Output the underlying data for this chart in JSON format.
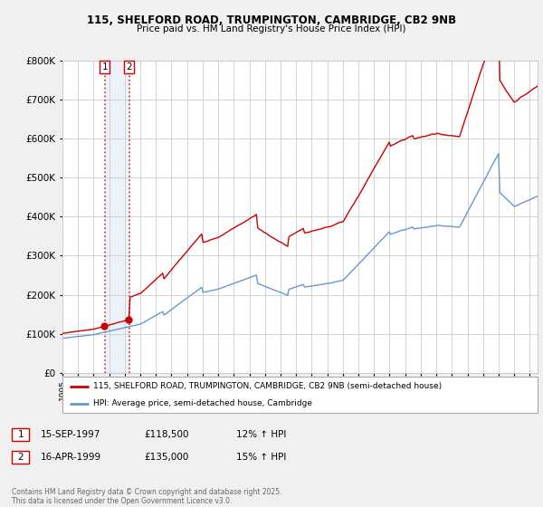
{
  "title1": "115, SHELFORD ROAD, TRUMPINGTON, CAMBRIDGE, CB2 9NB",
  "title2": "Price paid vs. HM Land Registry's House Price Index (HPI)",
  "legend_line1": "115, SHELFORD ROAD, TRUMPINGTON, CAMBRIDGE, CB2 9NB (semi-detached house)",
  "legend_line2": "HPI: Average price, semi-detached house, Cambridge",
  "footnote": "Contains HM Land Registry data © Crown copyright and database right 2025.\nThis data is licensed under the Open Government Licence v3.0.",
  "transaction1_date": "15-SEP-1997",
  "transaction1_price": "£118,500",
  "transaction1_hpi": "12% ↑ HPI",
  "transaction2_date": "16-APR-1999",
  "transaction2_price": "£135,000",
  "transaction2_hpi": "15% ↑ HPI",
  "red_color": "#cc0000",
  "blue_color": "#6699cc",
  "background_color": "#f0f0f0",
  "plot_bg_color": "#ffffff",
  "grid_color": "#cccccc",
  "ylim_min": 0,
  "ylim_max": 800000,
  "transaction1_year": 1997.71,
  "transaction2_year": 1999.29,
  "sale1_price": 118500,
  "sale2_price": 135000,
  "hpi_seed": 42,
  "hpi_base": 88000,
  "prop_scale_after_sale2": 1.42
}
